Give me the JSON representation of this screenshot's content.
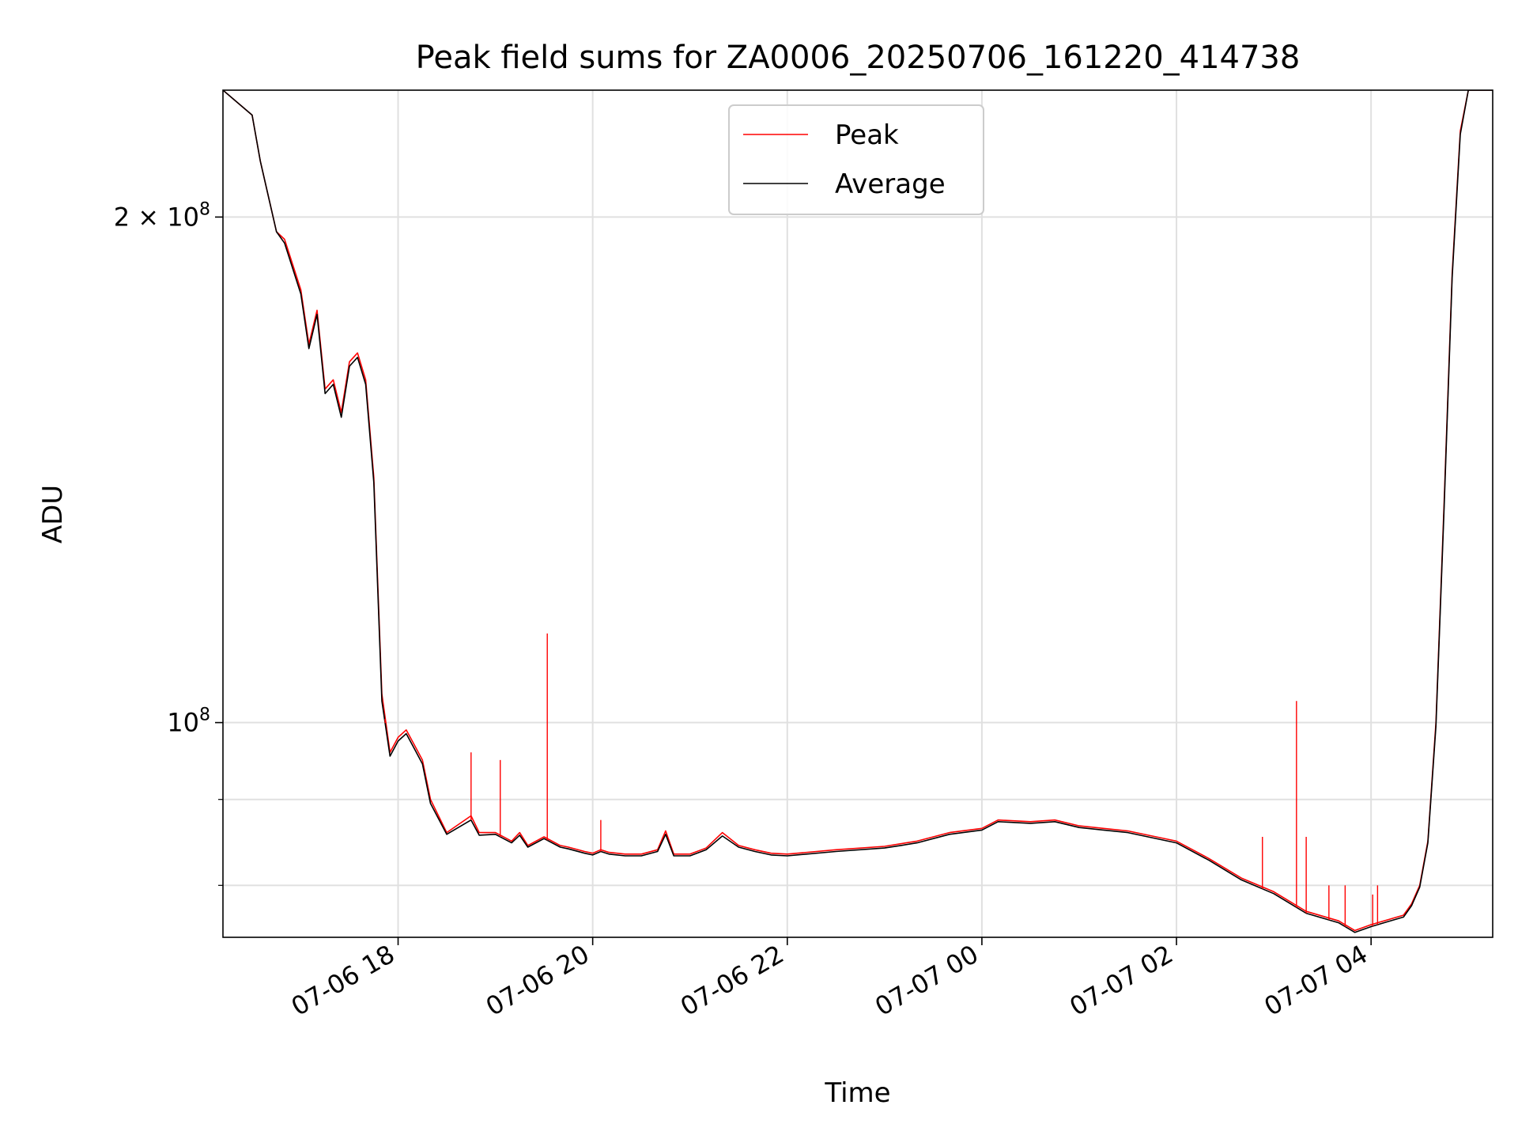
{
  "chart_data": {
    "type": "line",
    "title": "Peak field sums for ZA0006_20250706_161220_414738",
    "xlabel": "Time",
    "ylabel": "ADU",
    "yscale": "log",
    "xlim": [
      "2025-07-06 16:12",
      "2025-07-07 05:15"
    ],
    "ylim": [
      74500000,
      238000000
    ],
    "x_ticks": [
      "07-06 18",
      "07-06 20",
      "07-06 22",
      "07-07 00",
      "07-07 02",
      "07-07 04"
    ],
    "y_tick_labels": [
      "2 × 10^8",
      "10^8"
    ],
    "y_major_ticks": [
      200000000,
      100000000
    ],
    "y_minor_ticks": [
      80000000,
      90000000
    ],
    "grid": true,
    "legend": {
      "placement": "top-center",
      "entries": [
        "Peak",
        "Average"
      ]
    },
    "colors": {
      "Peak": "#ff0000",
      "Average": "#000000"
    },
    "series": [
      {
        "name": "Peak",
        "x": [
          "2025-07-06 16:12",
          "2025-07-06 16:30",
          "2025-07-06 16:35",
          "2025-07-06 16:45",
          "2025-07-06 16:50",
          "2025-07-06 17:00",
          "2025-07-06 17:05",
          "2025-07-06 17:10",
          "2025-07-06 17:15",
          "2025-07-06 17:20",
          "2025-07-06 17:25",
          "2025-07-06 17:30",
          "2025-07-06 17:35",
          "2025-07-06 17:40",
          "2025-07-06 17:45",
          "2025-07-06 17:50",
          "2025-07-06 17:55",
          "2025-07-06 18:00",
          "2025-07-06 18:05",
          "2025-07-06 18:10",
          "2025-07-06 18:15",
          "2025-07-06 18:20",
          "2025-07-06 18:30",
          "2025-07-06 18:45",
          "2025-07-06 18:50",
          "2025-07-06 19:00",
          "2025-07-06 19:10",
          "2025-07-06 19:15",
          "2025-07-06 19:20",
          "2025-07-06 19:30",
          "2025-07-06 19:40",
          "2025-07-06 19:45",
          "2025-07-06 19:55",
          "2025-07-06 20:00",
          "2025-07-06 20:05",
          "2025-07-06 20:10",
          "2025-07-06 20:20",
          "2025-07-06 20:30",
          "2025-07-06 20:40",
          "2025-07-06 20:45",
          "2025-07-06 20:50",
          "2025-07-06 21:00",
          "2025-07-06 21:10",
          "2025-07-06 21:20",
          "2025-07-06 21:30",
          "2025-07-06 21:40",
          "2025-07-06 21:50",
          "2025-07-06 22:00",
          "2025-07-06 22:30",
          "2025-07-06 23:00",
          "2025-07-06 23:10",
          "2025-07-06 23:20",
          "2025-07-06 23:40",
          "2025-07-07 00:00",
          "2025-07-07 00:10",
          "2025-07-07 00:30",
          "2025-07-07 00:45",
          "2025-07-07 01:00",
          "2025-07-07 01:30",
          "2025-07-07 02:00",
          "2025-07-07 02:20",
          "2025-07-07 02:40",
          "2025-07-07 03:00",
          "2025-07-07 03:20",
          "2025-07-07 03:40",
          "2025-07-07 03:50",
          "2025-07-07 04:00",
          "2025-07-07 04:10",
          "2025-07-07 04:20",
          "2025-07-07 04:25",
          "2025-07-07 04:30",
          "2025-07-07 04:35",
          "2025-07-07 04:40",
          "2025-07-07 04:45",
          "2025-07-07 04:50",
          "2025-07-07 04:55",
          "2025-07-07 05:00",
          "2025-07-07 05:15"
        ],
        "y": [
          238000000,
          230000000,
          216000000,
          196000000,
          194000000,
          181000000,
          168000000,
          176000000,
          158000000,
          160000000,
          153000000,
          164000000,
          166000000,
          160000000,
          140000000,
          104000000,
          96000000,
          98000000,
          99000000,
          97000000,
          95000000,
          90000000,
          86000000,
          88000000,
          86000000,
          86000000,
          85000000,
          86000000,
          84500000,
          85500000,
          84500000,
          84300000,
          83800000,
          83600000,
          84000000,
          83700000,
          83500000,
          83500000,
          84000000,
          86200000,
          83500000,
          83500000,
          84200000,
          86000000,
          84500000,
          84000000,
          83600000,
          83500000,
          84000000,
          84400000,
          84700000,
          85000000,
          86000000,
          86500000,
          87500000,
          87300000,
          87500000,
          86800000,
          86200000,
          85000000,
          83000000,
          80800000,
          79300000,
          77200000,
          76200000,
          75200000,
          75800000,
          76300000,
          76800000,
          78000000,
          80000000,
          85000000,
          100000000,
          135000000,
          185000000,
          225000000,
          238000000,
          238000000
        ]
      },
      {
        "name": "Average",
        "x": [
          "2025-07-06 16:12",
          "2025-07-06 16:30",
          "2025-07-06 16:35",
          "2025-07-06 16:45",
          "2025-07-06 16:50",
          "2025-07-06 17:00",
          "2025-07-06 17:05",
          "2025-07-06 17:10",
          "2025-07-06 17:15",
          "2025-07-06 17:20",
          "2025-07-06 17:25",
          "2025-07-06 17:30",
          "2025-07-06 17:35",
          "2025-07-06 17:40",
          "2025-07-06 17:45",
          "2025-07-06 17:50",
          "2025-07-06 17:55",
          "2025-07-06 18:00",
          "2025-07-06 18:05",
          "2025-07-06 18:10",
          "2025-07-06 18:15",
          "2025-07-06 18:20",
          "2025-07-06 18:30",
          "2025-07-06 18:45",
          "2025-07-06 18:50",
          "2025-07-06 19:00",
          "2025-07-06 19:10",
          "2025-07-06 19:15",
          "2025-07-06 19:20",
          "2025-07-06 19:30",
          "2025-07-06 19:40",
          "2025-07-06 19:45",
          "2025-07-06 19:55",
          "2025-07-06 20:00",
          "2025-07-06 20:05",
          "2025-07-06 20:10",
          "2025-07-06 20:20",
          "2025-07-06 20:30",
          "2025-07-06 20:40",
          "2025-07-06 20:45",
          "2025-07-06 20:50",
          "2025-07-06 21:00",
          "2025-07-06 21:10",
          "2025-07-06 21:20",
          "2025-07-06 21:30",
          "2025-07-06 21:40",
          "2025-07-06 21:50",
          "2025-07-06 22:00",
          "2025-07-06 22:30",
          "2025-07-06 23:00",
          "2025-07-06 23:10",
          "2025-07-06 23:20",
          "2025-07-06 23:40",
          "2025-07-07 00:00",
          "2025-07-07 00:10",
          "2025-07-07 00:30",
          "2025-07-07 00:45",
          "2025-07-07 01:00",
          "2025-07-07 01:30",
          "2025-07-07 02:00",
          "2025-07-07 02:20",
          "2025-07-07 02:40",
          "2025-07-07 03:00",
          "2025-07-07 03:20",
          "2025-07-07 03:40",
          "2025-07-07 03:50",
          "2025-07-07 04:00",
          "2025-07-07 04:10",
          "2025-07-07 04:20",
          "2025-07-07 04:25",
          "2025-07-07 04:30",
          "2025-07-07 04:35",
          "2025-07-07 04:40",
          "2025-07-07 04:45",
          "2025-07-07 04:50",
          "2025-07-07 04:55",
          "2025-07-07 05:00",
          "2025-07-07 05:15"
        ],
        "y": [
          238000000,
          230000000,
          216000000,
          196000000,
          193000000,
          180000000,
          167000000,
          175000000,
          157000000,
          159000000,
          152000000,
          163000000,
          165000000,
          159000000,
          139000000,
          103000000,
          95500000,
          97500000,
          98500000,
          96500000,
          94500000,
          89500000,
          85800000,
          87500000,
          85700000,
          85800000,
          84800000,
          85700000,
          84300000,
          85300000,
          84300000,
          84100000,
          83600000,
          83400000,
          83800000,
          83500000,
          83300000,
          83300000,
          83800000,
          85800000,
          83300000,
          83300000,
          84000000,
          85600000,
          84300000,
          83800000,
          83400000,
          83300000,
          83800000,
          84200000,
          84500000,
          84800000,
          85800000,
          86300000,
          87300000,
          87100000,
          87300000,
          86600000,
          86000000,
          84800000,
          82800000,
          80600000,
          79100000,
          77000000,
          76000000,
          75000000,
          75600000,
          76100000,
          76600000,
          77800000,
          79800000,
          84800000,
          99500000,
          134000000,
          184000000,
          224000000,
          238000000,
          238000000
        ]
      }
    ],
    "spikes": {
      "series": "Peak",
      "x": [
        "2025-07-06 17:52",
        "2025-07-06 18:45",
        "2025-07-06 19:03",
        "2025-07-06 19:32",
        "2025-07-06 20:05",
        "2025-07-07 02:53",
        "2025-07-07 03:14",
        "2025-07-07 03:20",
        "2025-07-07 03:34",
        "2025-07-07 03:44",
        "2025-07-07 04:01",
        "2025-07-07 04:04"
      ],
      "y": [
        100500000,
        96000000,
        95000000,
        113000000,
        87500000,
        85500000,
        103000000,
        85500000,
        80000000,
        80000000,
        79000000,
        80000000
      ]
    }
  }
}
